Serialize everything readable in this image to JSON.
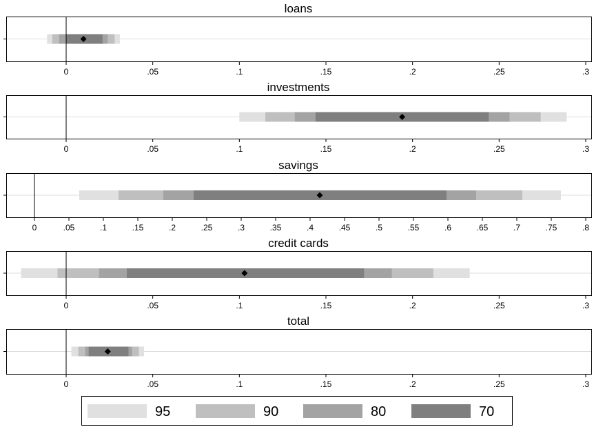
{
  "chart_data": [
    {
      "type": "bar",
      "title": "loans",
      "xlim": [
        -0.035,
        0.3
      ],
      "ticks": [
        "0",
        ".05",
        ".1",
        ".15",
        ".2",
        ".25",
        ".3"
      ],
      "tick_values": [
        0,
        0.05,
        0.1,
        0.15,
        0.2,
        0.25,
        0.3
      ],
      "reference_line": 0,
      "estimate": 0.01,
      "intervals": [
        {
          "level": "95",
          "low": -0.011,
          "high": 0.031
        },
        {
          "level": "90",
          "low": -0.008,
          "high": 0.028
        },
        {
          "level": "80",
          "low": -0.004,
          "high": 0.024
        },
        {
          "level": "70",
          "low": 0.0,
          "high": 0.021
        }
      ]
    },
    {
      "type": "bar",
      "title": "investments",
      "xlim": [
        -0.035,
        0.3
      ],
      "ticks": [
        "0",
        ".05",
        ".1",
        ".15",
        ".2",
        ".25",
        ".3"
      ],
      "tick_values": [
        0,
        0.05,
        0.1,
        0.15,
        0.2,
        0.25,
        0.3
      ],
      "reference_line": 0,
      "estimate": 0.194,
      "intervals": [
        {
          "level": "95",
          "low": 0.1,
          "high": 0.289
        },
        {
          "level": "90",
          "low": 0.115,
          "high": 0.274
        },
        {
          "level": "80",
          "low": 0.132,
          "high": 0.256
        },
        {
          "level": "70",
          "low": 0.144,
          "high": 0.244
        }
      ]
    },
    {
      "type": "bar",
      "title": "savings",
      "xlim": [
        -0.04,
        0.8
      ],
      "ticks": [
        "0",
        ".05",
        ".1",
        ".15",
        ".2",
        ".25",
        ".3",
        ".35",
        ".4",
        ".45",
        ".5",
        ".55",
        ".6",
        ".65",
        ".7",
        ".75",
        ".8"
      ],
      "tick_values": [
        0,
        0.05,
        0.1,
        0.15,
        0.2,
        0.25,
        0.3,
        0.35,
        0.4,
        0.45,
        0.5,
        0.55,
        0.6,
        0.65,
        0.7,
        0.75,
        0.8
      ],
      "reference_line": 0,
      "estimate": 0.414,
      "intervals": [
        {
          "level": "95",
          "low": 0.065,
          "high": 0.764
        },
        {
          "level": "90",
          "low": 0.122,
          "high": 0.708
        },
        {
          "level": "80",
          "low": 0.187,
          "high": 0.641
        },
        {
          "level": "70",
          "low": 0.231,
          "high": 0.598
        }
      ]
    },
    {
      "type": "bar",
      "title": "credit cards",
      "xlim": [
        -0.035,
        0.3
      ],
      "ticks": [
        "0",
        ".05",
        ".1",
        ".15",
        ".2",
        ".25",
        ".3"
      ],
      "tick_values": [
        0,
        0.05,
        0.1,
        0.15,
        0.2,
        0.25,
        0.3
      ],
      "reference_line": 0,
      "estimate": 0.103,
      "intervals": [
        {
          "level": "95",
          "low": -0.026,
          "high": 0.233
        },
        {
          "level": "90",
          "low": -0.005,
          "high": 0.212
        },
        {
          "level": "80",
          "low": 0.019,
          "high": 0.188
        },
        {
          "level": "70",
          "low": 0.035,
          "high": 0.172
        }
      ]
    },
    {
      "type": "bar",
      "title": "total",
      "xlim": [
        -0.035,
        0.3
      ],
      "ticks": [
        "0",
        ".05",
        ".1",
        ".15",
        ".2",
        ".25",
        ".3"
      ],
      "tick_values": [
        0,
        0.05,
        0.1,
        0.15,
        0.2,
        0.25,
        0.3
      ],
      "reference_line": 0,
      "estimate": 0.024,
      "intervals": [
        {
          "level": "95",
          "low": 0.003,
          "high": 0.045
        },
        {
          "level": "90",
          "low": 0.007,
          "high": 0.042
        },
        {
          "level": "80",
          "low": 0.011,
          "high": 0.038
        },
        {
          "level": "70",
          "low": 0.013,
          "high": 0.036
        }
      ]
    }
  ],
  "legend": [
    {
      "label": "95",
      "color": "#e0e0e0"
    },
    {
      "label": "90",
      "color": "#bfbfbf"
    },
    {
      "label": "80",
      "color": "#a3a3a3"
    },
    {
      "label": "70",
      "color": "#7f7f7f"
    }
  ],
  "colors": {
    "frame": "#000000",
    "gridline": "#dcdcdc",
    "marker": "#000000"
  }
}
